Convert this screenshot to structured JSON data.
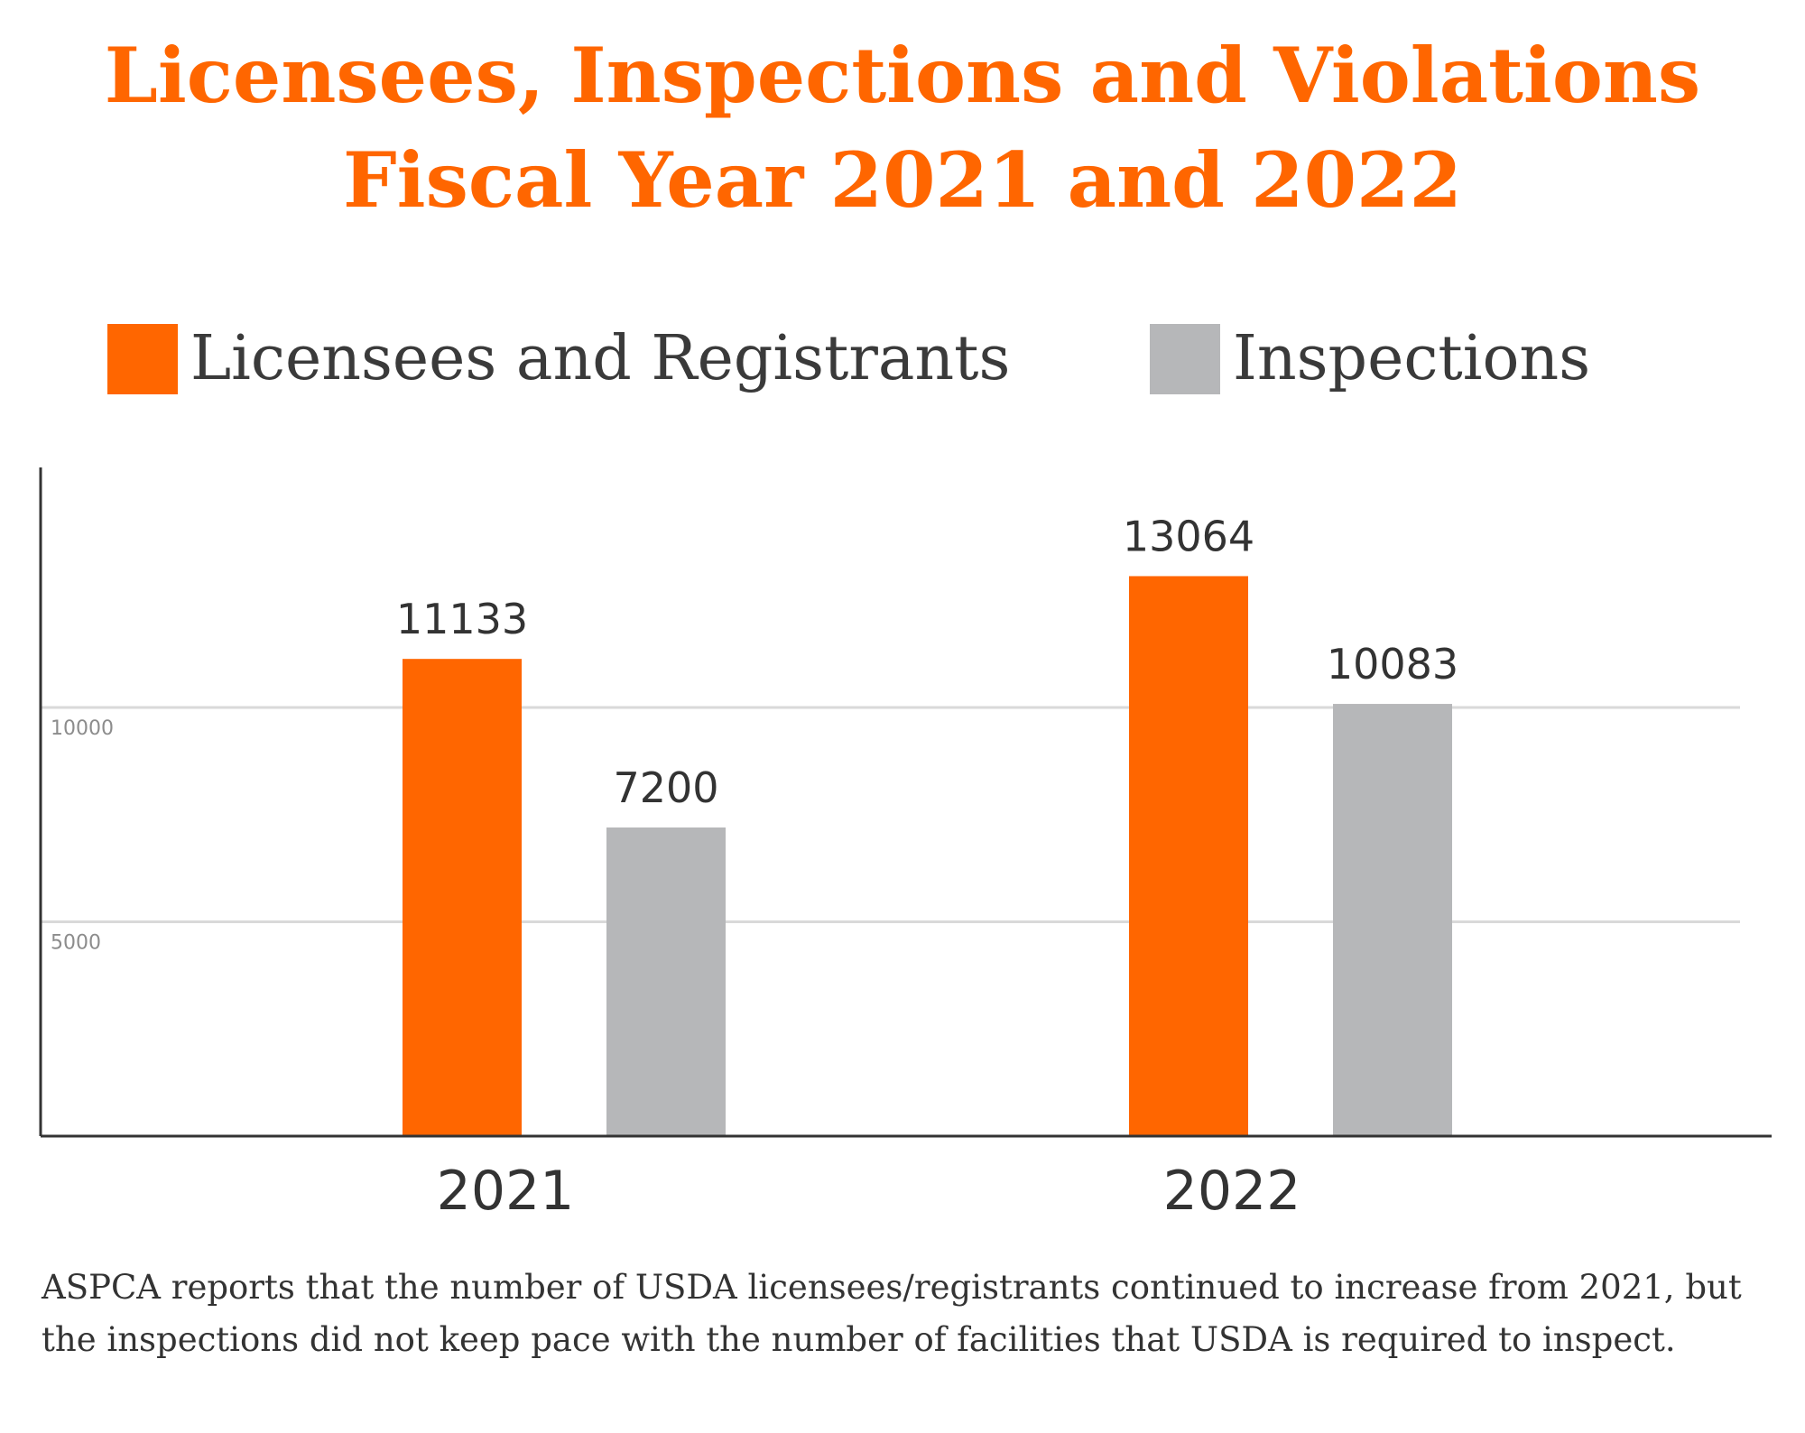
{
  "title_line_1": "Licensees, Inspections and Violations",
  "title_line_2": "Fiscal Year 2021 and 2022",
  "legend": [
    {
      "label": "Licensees and Registrants",
      "color": "#ff6600"
    },
    {
      "label": "Inspections",
      "color": "#b6b7b9"
    }
  ],
  "caption": "ASPCA reports that the number of USDA licensees/registrants continued to increase from 2021, but the inspections did not keep pace with the number of facilities that USDA is required to inspect.",
  "chart_data": {
    "type": "bar",
    "title": "Licensees, Inspections and Violations Fiscal Year 2021 and 2022",
    "xlabel": "",
    "ylabel": "",
    "categories": [
      "2021",
      "2022"
    ],
    "series": [
      {
        "name": "Licensees and Registrants",
        "values": [
          11133,
          13064
        ],
        "color": "#ff6600"
      },
      {
        "name": "Inspections",
        "values": [
          7200,
          10083
        ],
        "color": "#b6b7b9"
      }
    ],
    "y_ticks": [
      5000,
      10000
    ],
    "ylim": [
      0,
      15600
    ],
    "grid": true,
    "legend_position": "top"
  }
}
